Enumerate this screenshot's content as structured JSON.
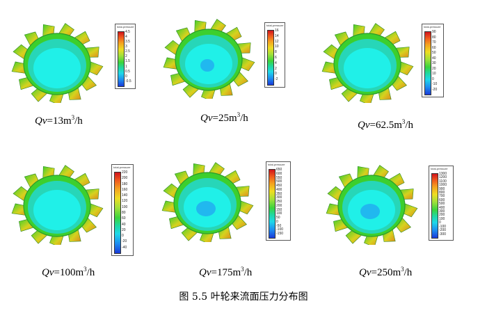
{
  "figure_caption": "图 5.5  叶轮来流面压力分布图",
  "legend_title": "total-pressure",
  "panels": [
    {
      "q_symbol": "Qv",
      "q_value": "=13m",
      "q_sup": "3",
      "q_unit": "/h",
      "ticks": [
        "4.5",
        "4",
        "3.5",
        "3",
        "2.5",
        "2",
        "1.5",
        "1",
        "0.5",
        "0",
        "-0.5"
      ]
    },
    {
      "q_symbol": "Qv",
      "q_value": "=25m",
      "q_sup": "3",
      "q_unit": "/h",
      "ticks": [
        "16",
        "14",
        "12",
        "10",
        "8",
        "6",
        "4",
        "2",
        "0",
        "-2"
      ]
    },
    {
      "q_symbol": "Qv",
      "q_value": "=62.5m",
      "q_sup": "3",
      "q_unit": "/h",
      "ticks": [
        "90",
        "80",
        "70",
        "60",
        "50",
        "40",
        "30",
        "20",
        "10",
        "0",
        "-10",
        "-20"
      ]
    },
    {
      "q_symbol": "Qv",
      "q_value": "=100m",
      "q_sup": "3",
      "q_unit": "/h",
      "ticks": [
        "220",
        "200",
        "180",
        "160",
        "140",
        "120",
        "100",
        "80",
        "60",
        "40",
        "20",
        "0",
        "-20",
        "-40"
      ]
    },
    {
      "q_symbol": "Qv",
      "q_value": "=175m",
      "q_sup": "3",
      "q_unit": "/h",
      "ticks": [
        "650",
        "600",
        "550",
        "500",
        "450",
        "400",
        "350",
        "300",
        "250",
        "200",
        "150",
        "100",
        "50",
        "0",
        "-50",
        "-100",
        "-150"
      ]
    },
    {
      "q_symbol": "Qv",
      "q_value": "=250m",
      "q_sup": "3",
      "q_unit": "/h",
      "ticks": [
        "1300",
        "1200",
        "1100",
        "1000",
        "900",
        "800",
        "700",
        "600",
        "500",
        "400",
        "300",
        "200",
        "100",
        "0",
        "-100",
        "-200",
        "-300"
      ]
    }
  ],
  "colors": {
    "blade_green": "#3ccf2e",
    "blade_yellow": "#d6d21e",
    "blade_orange": "#e08a1c",
    "rim_cyan": "#27d6b8",
    "hub_cyan": "#20f0e8",
    "hub_low_blue": "#22aef0"
  }
}
